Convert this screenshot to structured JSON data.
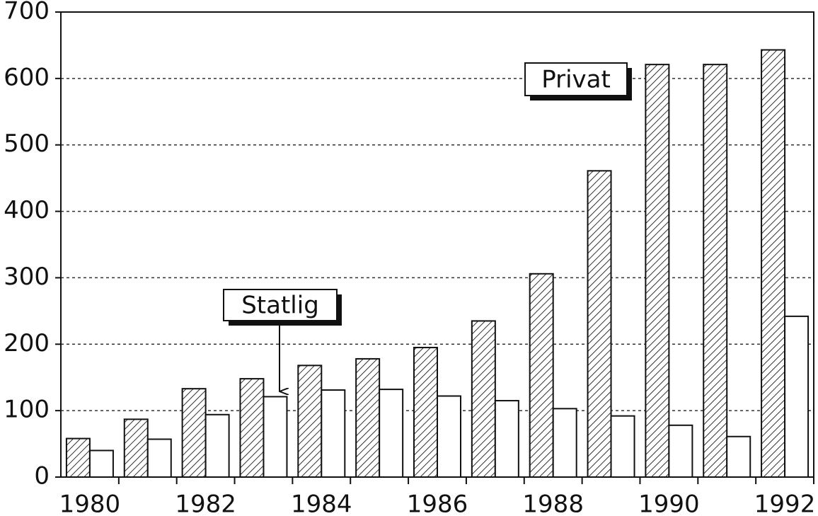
{
  "chart_data": {
    "type": "bar",
    "categories": [
      "1980",
      null,
      "1982",
      null,
      "1984",
      null,
      "1986",
      null,
      "1988",
      null,
      "1990",
      null,
      "1992"
    ],
    "series": [
      {
        "name": "Privat",
        "color": "#333333",
        "pattern": "diagonal",
        "values": [
          58,
          87,
          133,
          148,
          168,
          178,
          195,
          235,
          306,
          461,
          621,
          621,
          643
        ]
      },
      {
        "name": "Statlig",
        "color": "#ffffff",
        "values": [
          40,
          57,
          94,
          121,
          131,
          132,
          122,
          115,
          103,
          92,
          78,
          61,
          242
        ]
      }
    ],
    "ylim": [
      0,
      700
    ],
    "yticks": [
      0,
      100,
      200,
      300,
      400,
      500,
      600,
      700
    ],
    "grid": true
  }
}
